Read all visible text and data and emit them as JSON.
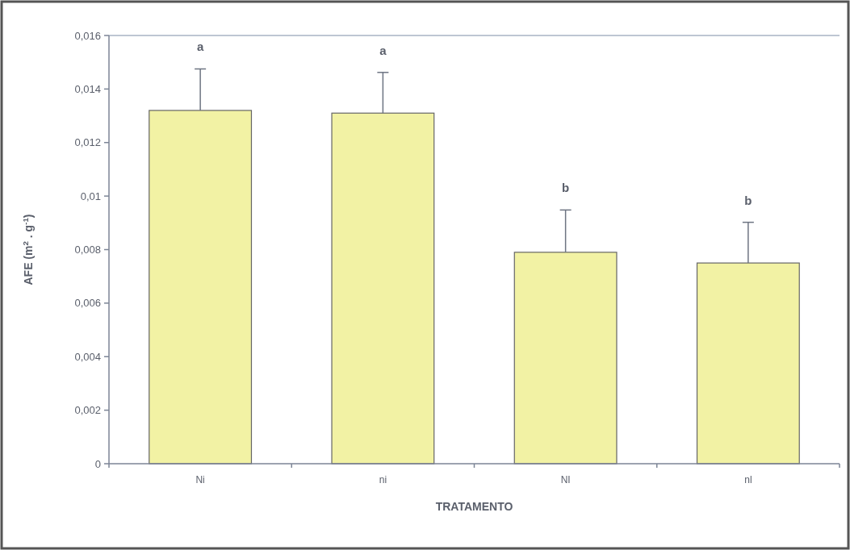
{
  "chart_data": {
    "type": "bar",
    "xlabel": "TRATAMENTO",
    "ylabel": "AFE (m$^{2}$ . g$^{-1}$)",
    "categories": [
      "Ni",
      "ni",
      "NI",
      "nl"
    ],
    "values": [
      0.0132,
      0.0131,
      0.0079,
      0.0075
    ],
    "errors": [
      [
        0.0132,
        0.01475
      ],
      [
        0.0131,
        0.01462
      ],
      [
        0.0079,
        0.00948
      ],
      [
        0.0075,
        0.00902
      ]
    ],
    "color": "#f2f2a4",
    "ylim": [
      0,
      0.016
    ],
    "yticks": [
      0,
      {
        "value": 0.002,
        "label": "0,002"
      },
      {
        "value": 0.004,
        "label": "0,004"
      },
      {
        "value": 0.006,
        "label": "0,006"
      },
      {
        "value": 0.008,
        "label": "0,008"
      },
      {
        "value": 0.01,
        "label": "0,01"
      },
      {
        "value": 0.012,
        "label": "0,012"
      },
      {
        "value": 0.014,
        "label": "0,014"
      },
      {
        "value": 0.016,
        "label": "0,016"
      }
    ],
    "grid": false,
    "annotations": [
      "a",
      "a",
      "b",
      "b"
    ]
  }
}
